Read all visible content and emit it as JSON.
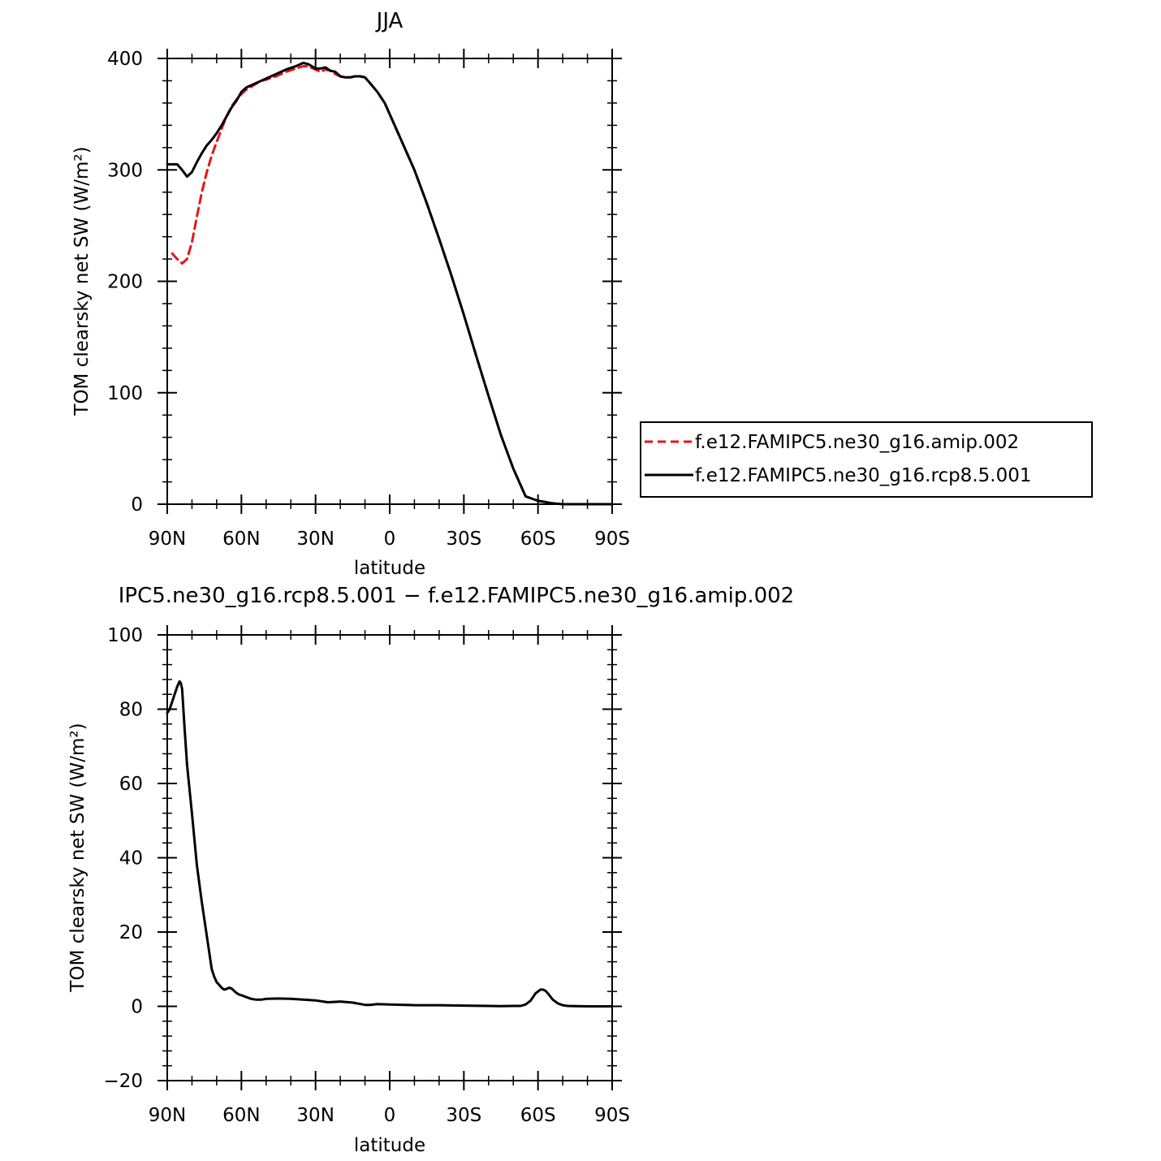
{
  "chart_data": [
    {
      "type": "line",
      "title": "JJA",
      "xlabel": "latitude",
      "ylabel": "TOM clearsky net SW (W/m²)",
      "xlim": [
        90,
        -90
      ],
      "ylim": [
        0,
        400
      ],
      "xticks": [
        {
          "value": 90,
          "label": "90N"
        },
        {
          "value": 60,
          "label": "60N"
        },
        {
          "value": 30,
          "label": "30N"
        },
        {
          "value": 0,
          "label": "0"
        },
        {
          "value": -30,
          "label": "30S"
        },
        {
          "value": -60,
          "label": "60S"
        },
        {
          "value": -90,
          "label": "90S"
        }
      ],
      "yticks": [
        {
          "value": 0,
          "label": "0"
        },
        {
          "value": 100,
          "label": "100"
        },
        {
          "value": 200,
          "label": "200"
        },
        {
          "value": 300,
          "label": "300"
        },
        {
          "value": 400,
          "label": "400"
        }
      ],
      "legend": {
        "placement": "right"
      },
      "series": [
        {
          "name": "f.e12.FAMIPC5.ne30_g16.amip.002",
          "color": "#e8141a",
          "dash": "dashed",
          "x": [
            88,
            86,
            84,
            82,
            80,
            78,
            76,
            74,
            72,
            70,
            68,
            66,
            64,
            62,
            60,
            58,
            55,
            52,
            50,
            46,
            42,
            38,
            35,
            33,
            30,
            28,
            26,
            24,
            22,
            20,
            18,
            16,
            14,
            12,
            10,
            8,
            5,
            2,
            0,
            -5,
            -10,
            -15,
            -20,
            -25,
            -30,
            -35,
            -40,
            -45,
            -50,
            -55,
            -60,
            -63,
            -65,
            -67,
            -70,
            -75,
            -80,
            -85,
            -90
          ],
          "y": [
            225,
            220,
            216,
            220,
            235,
            258,
            280,
            298,
            313,
            325,
            337,
            348,
            357,
            363,
            368,
            372,
            376,
            380,
            381,
            384,
            388,
            391,
            393,
            393,
            390,
            388,
            390,
            389,
            386,
            384,
            383,
            383,
            384,
            384,
            383,
            378,
            370,
            360,
            350,
            325,
            300,
            270,
            238,
            205,
            170,
            133,
            97,
            62,
            32,
            7,
            3,
            2,
            1,
            0.5,
            0,
            0,
            0,
            0,
            0
          ]
        },
        {
          "name": "f.e12.FAMIPC5.ne30_g16.rcp8.5.001",
          "color": "#000000",
          "dash": "solid",
          "x": [
            90,
            86,
            84,
            82,
            80,
            78,
            76,
            74,
            72,
            70,
            68,
            66,
            64,
            62,
            60,
            58,
            55,
            52,
            50,
            46,
            42,
            38,
            35,
            33,
            30,
            28,
            26,
            24,
            22,
            20,
            18,
            16,
            14,
            12,
            10,
            8,
            5,
            2,
            0,
            -5,
            -10,
            -15,
            -20,
            -25,
            -30,
            -35,
            -40,
            -45,
            -50,
            -55,
            -60,
            -63,
            -65,
            -67,
            -70,
            -75,
            -80,
            -85,
            -90
          ],
          "y": [
            305,
            305,
            300,
            294,
            298,
            307,
            315,
            322,
            327,
            333,
            340,
            348,
            356,
            362,
            370,
            374,
            377,
            380,
            382,
            386,
            390,
            393,
            396,
            395,
            391,
            391,
            392,
            389,
            388,
            384,
            383,
            383,
            384,
            384,
            383,
            378,
            370,
            360,
            350,
            325,
            300,
            270,
            238,
            205,
            170,
            133,
            97,
            62,
            32,
            7,
            3,
            2,
            1,
            0.5,
            0,
            0,
            0,
            0,
            0
          ]
        }
      ]
    },
    {
      "type": "line",
      "title": "IPC5.ne30_g16.rcp8.5.001 − f.e12.FAMIPC5.ne30_g16.amip.002",
      "xlabel": "latitude",
      "ylabel": "TOM clearsky net SW (W/m²)",
      "xlim": [
        90,
        -90
      ],
      "ylim": [
        -20,
        100
      ],
      "xticks": [
        {
          "value": 90,
          "label": "90N"
        },
        {
          "value": 60,
          "label": "60N"
        },
        {
          "value": 30,
          "label": "30N"
        },
        {
          "value": 0,
          "label": "0"
        },
        {
          "value": -30,
          "label": "30S"
        },
        {
          "value": -60,
          "label": "60S"
        },
        {
          "value": -90,
          "label": "90S"
        }
      ],
      "yticks": [
        {
          "value": -20,
          "label": "−20"
        },
        {
          "value": 0,
          "label": "0"
        },
        {
          "value": 20,
          "label": "20"
        },
        {
          "value": 40,
          "label": "40"
        },
        {
          "value": 60,
          "label": "60"
        },
        {
          "value": 80,
          "label": "80"
        },
        {
          "value": 100,
          "label": "100"
        }
      ],
      "series": [
        {
          "color": "#000000",
          "dash": "solid",
          "x": [
            90,
            89,
            87,
            86,
            85,
            84.5,
            84,
            83,
            82,
            80,
            78,
            76,
            74,
            72,
            71,
            70,
            69,
            68,
            67,
            66,
            65,
            64,
            63,
            62,
            61,
            60,
            58,
            56,
            54,
            52,
            50,
            45,
            40,
            35,
            30,
            25,
            20,
            15,
            10,
            8,
            5,
            0,
            -10,
            -20,
            -30,
            -40,
            -45,
            -50,
            -53,
            -55,
            -57,
            -59,
            -61,
            -62,
            -63,
            -64,
            -66,
            -68,
            -70,
            -72,
            -75,
            -80,
            -85,
            -90
          ],
          "y": [
            79,
            80,
            84,
            86,
            87.5,
            87,
            85.5,
            75,
            65,
            52,
            38,
            28,
            19,
            10,
            8,
            6.5,
            5.8,
            5,
            4.5,
            4.7,
            5,
            4.8,
            4.2,
            3.6,
            3.2,
            3.0,
            2.5,
            2.0,
            1.8,
            1.8,
            2.0,
            2.1,
            2.0,
            1.8,
            1.6,
            1.1,
            1.3,
            1.0,
            0.4,
            0.4,
            0.6,
            0.5,
            0.3,
            0.3,
            0.2,
            0.1,
            0.05,
            0.1,
            0.1,
            0.5,
            1.5,
            3.5,
            4.5,
            4.5,
            4.2,
            3.5,
            1.8,
            0.8,
            0.3,
            0.1,
            0.05,
            0,
            0,
            0
          ]
        }
      ]
    }
  ]
}
